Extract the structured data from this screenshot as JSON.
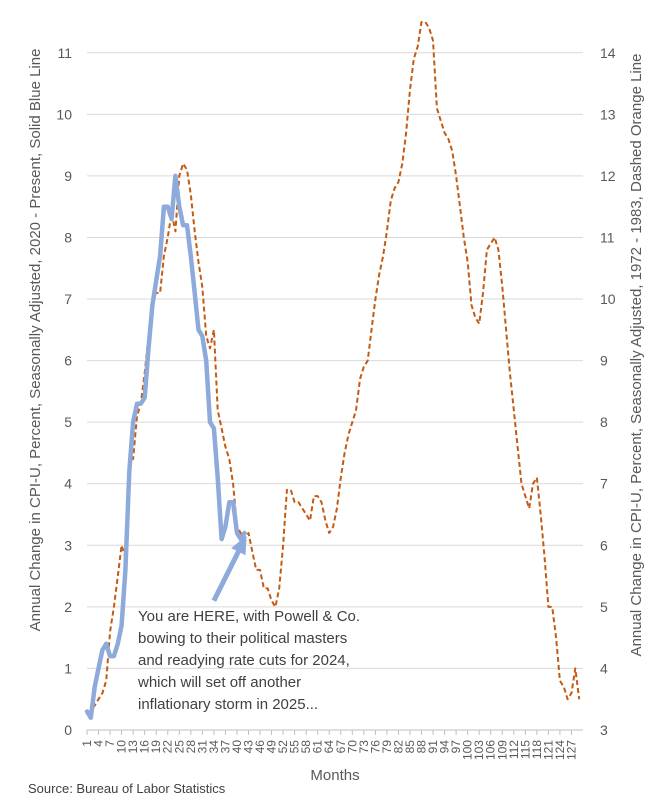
{
  "chart_data": {
    "type": "line",
    "xlabel": "Months",
    "ylabel_left": "Annual Change in CPI-U, Percent, Seasonally Adjusted, 2020 - Present, Solid Blue Line",
    "ylabel_right": "Annual Change in CPI-U, Percent, Seasonally Adjusted, 1972 - 1983, Dashed Orange Line",
    "ylim_left": [
      0,
      11.5
    ],
    "ylim_right": [
      3,
      14.5
    ],
    "yticks_left": [
      0,
      1,
      2,
      3,
      4,
      5,
      6,
      7,
      8,
      9,
      10,
      11
    ],
    "yticks_right": [
      3,
      4,
      5,
      6,
      7,
      8,
      9,
      10,
      11,
      12,
      13,
      14
    ],
    "xticks": [
      1,
      4,
      7,
      10,
      13,
      16,
      19,
      22,
      25,
      28,
      31,
      34,
      37,
      40,
      43,
      46,
      49,
      52,
      55,
      58,
      61,
      64,
      67,
      70,
      73,
      76,
      79,
      82,
      85,
      88,
      91,
      94,
      97,
      100,
      103,
      106,
      109,
      112,
      115,
      118,
      121,
      124,
      127
    ],
    "xtick_labels": [
      "1",
      "4",
      "7",
      "10",
      "13",
      "16",
      "19",
      "22",
      "25",
      "28",
      "31",
      "34",
      "37",
      "40",
      "43",
      "46",
      "49",
      "52",
      "55",
      "58",
      "61",
      "64",
      "67",
      "70",
      "73",
      "76",
      "79",
      "82",
      "85",
      "88",
      "91",
      "94",
      "97",
      "100",
      "103",
      "106",
      "109",
      "112",
      "115",
      "118",
      "121",
      "124",
      "127"
    ],
    "xlim": [
      1,
      130
    ],
    "grid": true,
    "series": [
      {
        "axis": "left",
        "color": "#8eaadb",
        "style": "solid",
        "x": [
          1,
          2,
          3,
          4,
          5,
          6,
          7,
          8,
          9,
          10,
          11,
          12,
          13,
          14,
          15,
          16,
          17,
          18,
          19,
          20,
          21,
          22,
          23,
          24,
          25,
          26,
          27,
          28,
          29,
          30,
          31,
          32,
          33,
          34,
          35,
          36,
          37,
          38,
          39,
          40,
          41,
          42
        ],
        "values": [
          0.3,
          0.2,
          0.7,
          1.0,
          1.3,
          1.4,
          1.2,
          1.2,
          1.4,
          1.7,
          2.6,
          4.2,
          5.0,
          5.3,
          5.3,
          5.4,
          6.2,
          6.9,
          7.3,
          7.7,
          8.5,
          8.5,
          8.3,
          9.0,
          8.5,
          8.2,
          8.2,
          7.7,
          7.1,
          6.5,
          6.4,
          6.0,
          5.0,
          4.9,
          4.1,
          3.1,
          3.3,
          3.7,
          3.7,
          3.2,
          3.1,
          3.2
        ]
      },
      {
        "axis": "right",
        "color": "#c55a11",
        "style": "dashed",
        "x": [
          1,
          2,
          3,
          4,
          5,
          6,
          7,
          8,
          9,
          10,
          11,
          12,
          13,
          14,
          15,
          16,
          17,
          18,
          19,
          20,
          21,
          22,
          23,
          24,
          25,
          26,
          27,
          28,
          29,
          30,
          31,
          32,
          33,
          34,
          35,
          36,
          37,
          38,
          39,
          40,
          41,
          42,
          43,
          44,
          45,
          46,
          47,
          48,
          49,
          50,
          51,
          52,
          53,
          54,
          55,
          56,
          57,
          58,
          59,
          60,
          61,
          62,
          63,
          64,
          65,
          66,
          67,
          68,
          69,
          70,
          71,
          72,
          73,
          74,
          75,
          76,
          77,
          78,
          79,
          80,
          81,
          82,
          83,
          84,
          85,
          86,
          87,
          88,
          89,
          90,
          91,
          92,
          93,
          94,
          95,
          96,
          97,
          98,
          99,
          100,
          101,
          102,
          103,
          104,
          105,
          106,
          107,
          108,
          109,
          110,
          111,
          112,
          113,
          114,
          115,
          116,
          117,
          118,
          119,
          120,
          121,
          122,
          123,
          124,
          125,
          126,
          127,
          128,
          129
        ],
        "values": [
          3.3,
          3.3,
          3.4,
          3.5,
          3.6,
          3.8,
          4.6,
          5.0,
          5.5,
          6.0,
          5.8,
          7.4,
          7.4,
          8.1,
          8.3,
          8.8,
          9.4,
          10.0,
          10.1,
          10.1,
          10.7,
          11.0,
          11.4,
          11.1,
          12.0,
          12.2,
          12.1,
          11.7,
          11.1,
          10.6,
          10.2,
          9.4,
          9.2,
          9.5,
          8.2,
          7.9,
          7.6,
          7.4,
          7.0,
          6.3,
          6.2,
          6.1,
          6.2,
          5.9,
          5.6,
          5.6,
          5.3,
          5.3,
          5.1,
          5.0,
          5.3,
          6.0,
          6.9,
          6.9,
          6.7,
          6.7,
          6.6,
          6.5,
          6.4,
          6.8,
          6.8,
          6.7,
          6.4,
          6.2,
          6.3,
          6.6,
          7.1,
          7.5,
          7.8,
          8.0,
          8.2,
          8.7,
          8.9,
          9.0,
          9.5,
          10.0,
          10.4,
          10.7,
          11.1,
          11.6,
          11.8,
          11.9,
          12.2,
          12.7,
          13.4,
          13.9,
          14.1,
          14.5,
          14.5,
          14.4,
          14.2,
          13.1,
          12.9,
          12.7,
          12.6,
          12.4,
          12.0,
          11.5,
          11.0,
          10.6,
          9.9,
          9.7,
          9.6,
          10.1,
          10.8,
          10.9,
          11.0,
          10.8,
          10.2,
          9.5,
          8.8,
          8.2,
          7.6,
          7.0,
          6.8,
          6.6,
          7.0,
          7.1,
          6.5,
          5.8,
          5.0,
          5.0,
          4.5,
          3.8,
          3.7,
          3.5,
          3.6,
          4.0,
          3.5
        ]
      }
    ],
    "annotations": [
      {
        "text_lines": [
          "You are HERE, with Powell & Co.",
          "bowing to their political masters",
          "and readying rate cuts for 2024,",
          "which will set off another",
          "inflationary storm in 2025..."
        ],
        "arrow_from_month": 34,
        "arrow_from_value": 2.1,
        "arrow_to_month": 42,
        "arrow_to_value": 3.1
      }
    ]
  },
  "source": "Source: Bureau of Labor Statistics"
}
